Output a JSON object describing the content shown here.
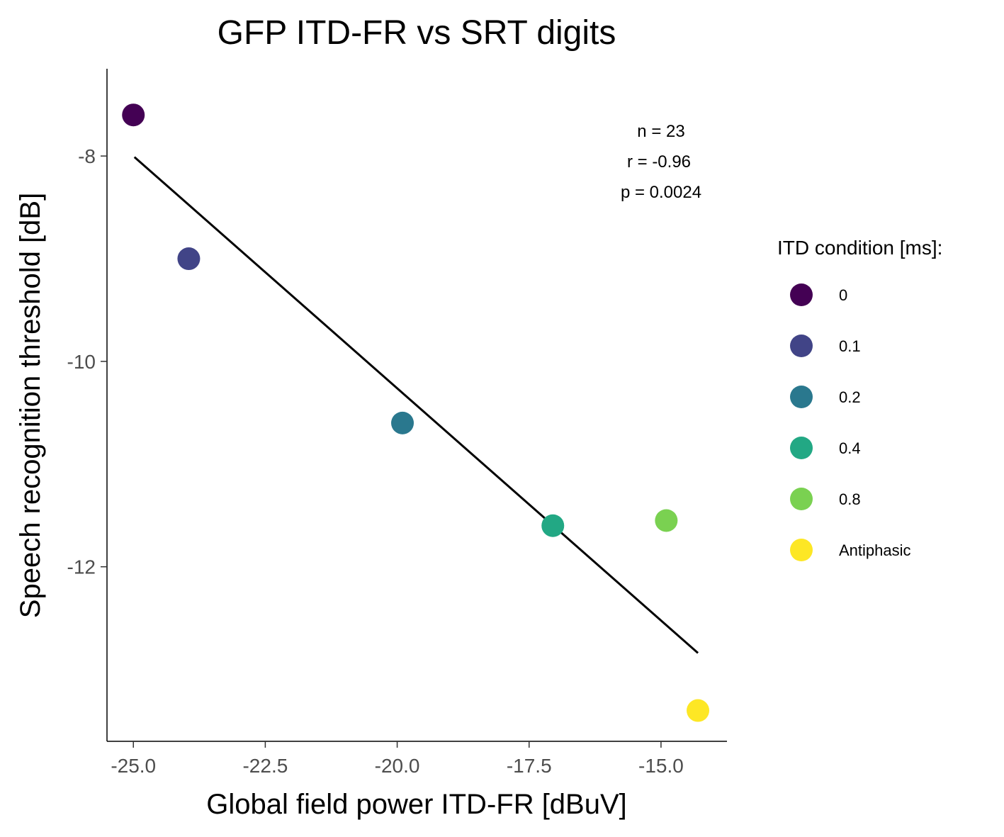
{
  "chart_data": {
    "type": "scatter",
    "title": "GFP ITD-FR vs SRT digits",
    "xlabel": "Global field power ITD-FR [dBuV]",
    "ylabel": "Speech recognition threshold [dB]",
    "xlim": [
      -25.5,
      -13.75
    ],
    "ylim": [
      -13.7,
      -7.15
    ],
    "x_ticks": [
      -25.0,
      -22.5,
      -20.0,
      -17.5,
      -15.0
    ],
    "x_tick_labels": [
      "-25.0",
      "-22.5",
      "-20.0",
      "-17.5",
      "-15.0"
    ],
    "y_ticks": [
      -8,
      -10,
      -12
    ],
    "y_tick_labels": [
      "-8",
      "-10",
      "-12"
    ],
    "grid": false,
    "points": [
      {
        "x": -25.0,
        "y": -7.6,
        "category": "0",
        "color": "#440154"
      },
      {
        "x": -23.95,
        "y": -9.0,
        "category": "0.1",
        "color": "#414487"
      },
      {
        "x": -19.9,
        "y": -10.6,
        "category": "0.2",
        "color": "#2A788E"
      },
      {
        "x": -17.05,
        "y": -11.6,
        "category": "0.4",
        "color": "#22A884"
      },
      {
        "x": -14.9,
        "y": -11.55,
        "category": "0.8",
        "color": "#7AD151"
      },
      {
        "x": -14.3,
        "y": -13.4,
        "category": "Antiphasic",
        "color": "#FDE725"
      }
    ],
    "fit_line": {
      "x": [
        -24.98,
        -14.3
      ],
      "y": [
        -8.01,
        -12.84
      ],
      "color": "#000000"
    },
    "annotations": [
      "n = 23",
      "r = -0.96",
      "p =  0.0024"
    ],
    "legend": {
      "title": "ITD condition [ms]:",
      "placement": "right",
      "items": [
        {
          "label": "0",
          "color": "#440154"
        },
        {
          "label": "0.1",
          "color": "#414487"
        },
        {
          "label": "0.2",
          "color": "#2A788E"
        },
        {
          "label": "0.4",
          "color": "#22A884"
        },
        {
          "label": "0.8",
          "color": "#7AD151"
        },
        {
          "label": "Antiphasic",
          "color": "#FDE725"
        }
      ]
    }
  }
}
